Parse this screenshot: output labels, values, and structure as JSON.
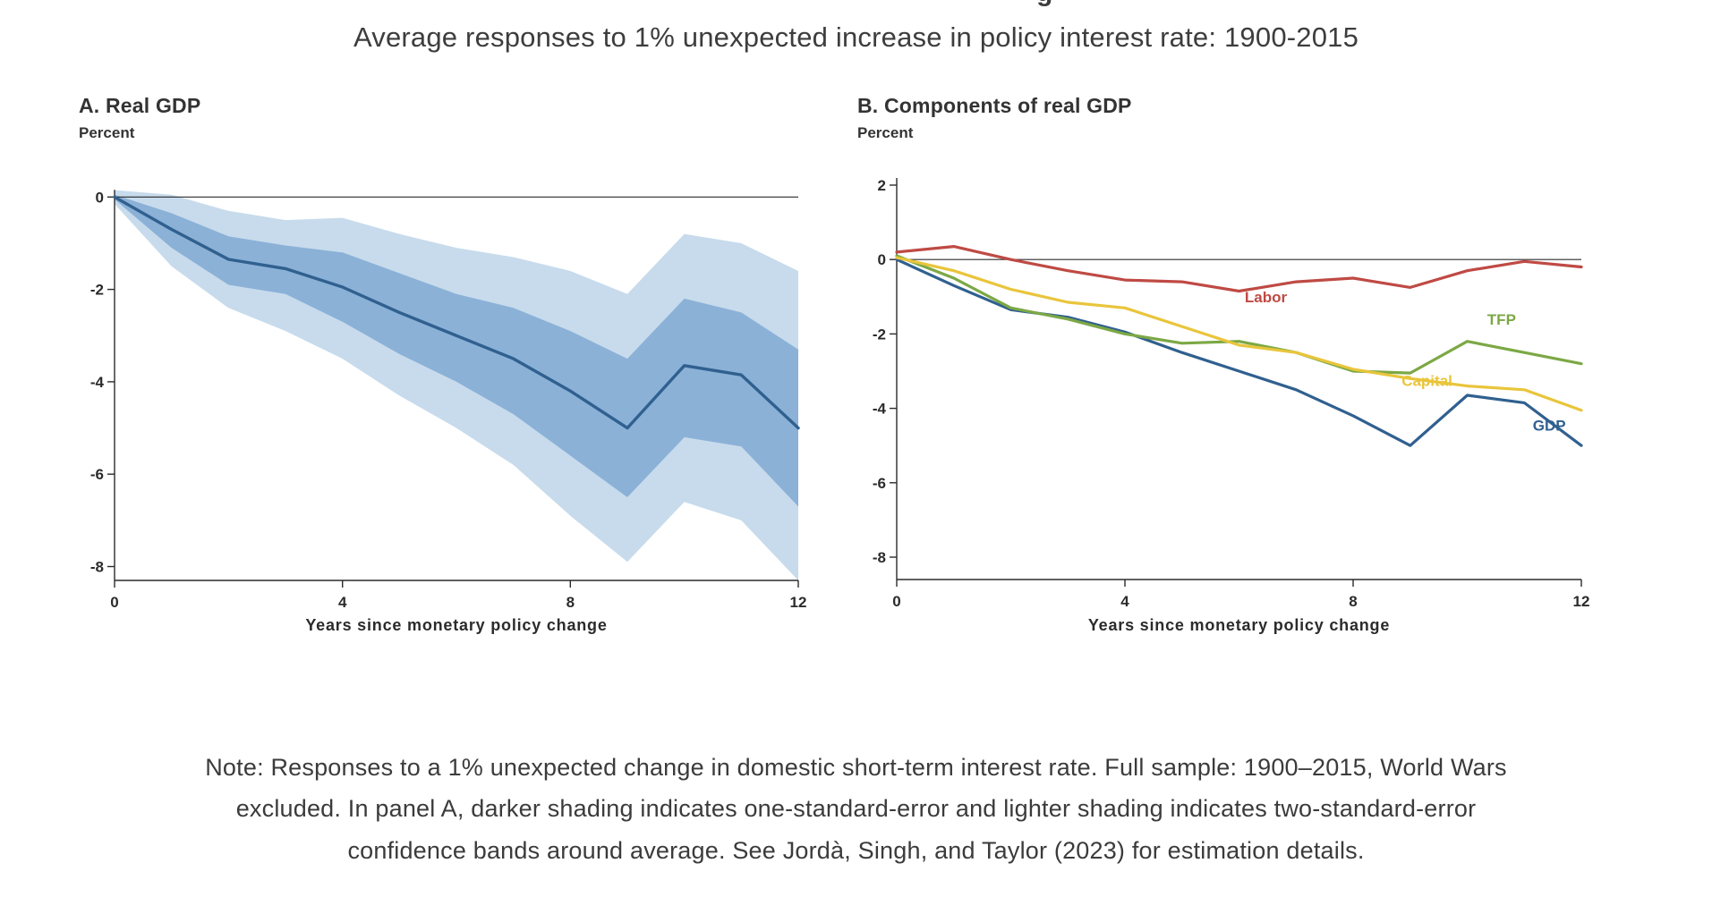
{
  "page": {
    "cropped_fragment": "g",
    "title": "Average responses to 1% unexpected increase in policy interest rate: 1900-2015",
    "note_lines": [
      "Note: Responses to a 1% unexpected change in domestic short-term interest rate. Full sample: 1900–2015, World Wars",
      "excluded. In panel A, darker shading indicates one-standard-error and lighter shading indicates two-standard-error",
      "confidence bands around average. See Jordà, Singh, and Taylor (2023) for estimation details."
    ]
  },
  "chart_data": [
    {
      "id": "panelA",
      "type": "line",
      "panel_label": "A. Real GDP",
      "ylabel": "Percent",
      "xlabel": "Years since monetary policy change",
      "x": [
        0,
        1,
        2,
        3,
        4,
        5,
        6,
        7,
        8,
        9,
        10,
        11,
        12
      ],
      "xlim": [
        0,
        12
      ],
      "ylim": [
        -8.3,
        0.8
      ],
      "xticks": [
        0,
        4,
        8,
        12
      ],
      "yticks": [
        0,
        -2,
        -4,
        -6,
        -8
      ],
      "grid": false,
      "series": [
        {
          "name": "GDP",
          "color": "#30608f",
          "width": 3.4,
          "values": [
            0,
            -0.7,
            -1.35,
            -1.55,
            -1.95,
            -2.5,
            -3.0,
            -3.5,
            -4.2,
            -5.0,
            -3.65,
            -3.85,
            -5.0
          ]
        }
      ],
      "bands": [
        {
          "name": "two-standard-error-band",
          "color": "#c7dbec",
          "upper": [
            0.15,
            0.05,
            -0.3,
            -0.5,
            -0.45,
            -0.8,
            -1.1,
            -1.3,
            -1.6,
            -2.1,
            -0.8,
            -1.0,
            -1.6
          ],
          "lower": [
            -0.15,
            -1.5,
            -2.4,
            -2.9,
            -3.5,
            -4.3,
            -5.0,
            -5.8,
            -6.9,
            -7.9,
            -6.6,
            -7.0,
            -8.3
          ]
        },
        {
          "name": "one-standard-error-band",
          "color": "#8bb1d7",
          "upper": [
            0.05,
            -0.35,
            -0.85,
            -1.05,
            -1.2,
            -1.65,
            -2.1,
            -2.4,
            -2.9,
            -3.5,
            -2.2,
            -2.5,
            -3.3
          ],
          "lower": [
            -0.05,
            -1.1,
            -1.9,
            -2.1,
            -2.7,
            -3.4,
            -4.0,
            -4.7,
            -5.6,
            -6.5,
            -5.2,
            -5.4,
            -6.7
          ]
        }
      ]
    },
    {
      "id": "panelB",
      "type": "line",
      "panel_label": "B. Components of real GDP",
      "ylabel": "Percent",
      "xlabel": "Years since monetary policy change",
      "x": [
        0,
        1,
        2,
        3,
        4,
        5,
        6,
        7,
        8,
        9,
        10,
        11,
        12
      ],
      "xlim": [
        0,
        12
      ],
      "ylim": [
        -8.6,
        2.6
      ],
      "xticks": [
        0,
        4,
        8,
        12
      ],
      "yticks": [
        2,
        0,
        -2,
        -4,
        -6,
        -8
      ],
      "grid": false,
      "series": [
        {
          "name": "GDP",
          "color": "#30608f",
          "width": 3.2,
          "values": [
            0,
            -0.7,
            -1.35,
            -1.55,
            -1.95,
            -2.5,
            -3.0,
            -3.5,
            -4.2,
            -5.0,
            -3.65,
            -3.85,
            -5.0
          ],
          "label": {
            "text": "GDP",
            "x": 11.15,
            "y": -4.6
          }
        },
        {
          "name": "TFP",
          "color": "#7ca845",
          "width": 3.2,
          "values": [
            0.1,
            -0.5,
            -1.3,
            -1.6,
            -2.0,
            -2.25,
            -2.2,
            -2.5,
            -3.0,
            -3.05,
            -2.2,
            -2.5,
            -2.8
          ],
          "label": {
            "text": "TFP",
            "x": 10.35,
            "y": -1.75
          }
        },
        {
          "name": "Capital",
          "color": "#e9c53b",
          "width": 3.2,
          "values": [
            0.05,
            -0.3,
            -0.8,
            -1.15,
            -1.3,
            -1.8,
            -2.3,
            -2.5,
            -2.95,
            -3.2,
            -3.4,
            -3.5,
            -4.05
          ],
          "label": {
            "text": "Capital",
            "x": 8.85,
            "y": -3.4
          }
        },
        {
          "name": "Labor",
          "color": "#bf4a44",
          "width": 3.2,
          "values": [
            0.2,
            0.35,
            0.0,
            -0.3,
            -0.55,
            -0.6,
            -0.85,
            -0.6,
            -0.5,
            -0.75,
            -0.3,
            -0.05,
            -0.2
          ],
          "label": {
            "text": "Labor",
            "x": 6.1,
            "y": -1.15
          }
        }
      ]
    }
  ]
}
